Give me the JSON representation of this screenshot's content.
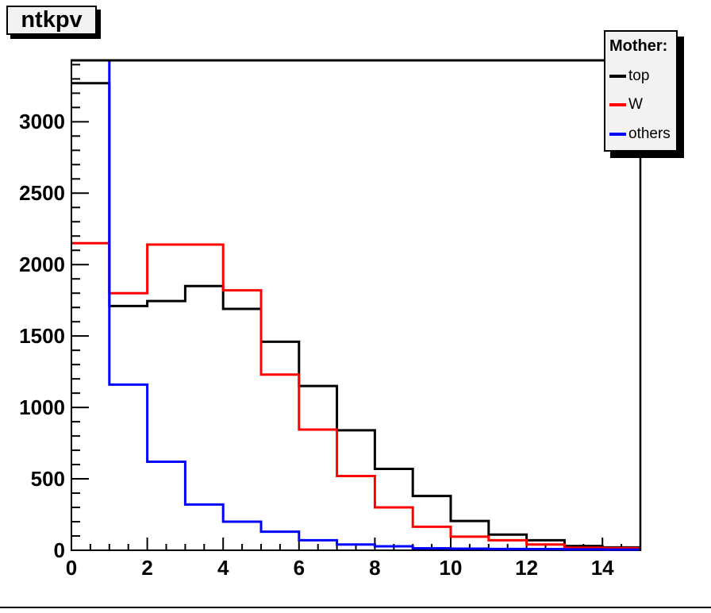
{
  "title": "ntkpv",
  "legend": {
    "header": "Mother:",
    "entries": [
      {
        "label": "top",
        "color": "#000000"
      },
      {
        "label": "W",
        "color": "#ff0000"
      },
      {
        "label": "others",
        "color": "#0000ff"
      }
    ]
  },
  "colors": {
    "background": "#ffffff",
    "box_fill": "#f2f2f2",
    "frame": "#000000",
    "series_top": "#000000",
    "series_w": "#ff0000",
    "series_others": "#0000ff"
  },
  "chart_data": {
    "type": "step-histogram",
    "title": "ntkpv",
    "xlabel": "",
    "ylabel": "",
    "xlim": [
      0,
      15
    ],
    "ylim": [
      0,
      3430
    ],
    "grid": false,
    "legend_position": "top-right",
    "bin_edges": [
      0,
      1,
      2,
      3,
      4,
      5,
      6,
      7,
      8,
      9,
      10,
      11,
      12,
      13,
      14,
      15
    ],
    "x_tick_values": [
      0,
      2,
      4,
      6,
      8,
      10,
      12,
      14
    ],
    "x_tick_labels": [
      "0",
      "2",
      "4",
      "6",
      "8",
      "10",
      "12",
      "14"
    ],
    "x_minor_tick_step": 0.5,
    "y_tick_values": [
      0,
      500,
      1000,
      1500,
      2000,
      2500,
      3000
    ],
    "y_tick_labels": [
      "0",
      "500",
      "1000",
      "1500",
      "2000",
      "2500",
      "3000"
    ],
    "y_minor_tick_step": 100,
    "series": [
      {
        "name": "top",
        "color": "#000000",
        "first_bin_overflow": false,
        "values": [
          3270,
          1710,
          1745,
          1850,
          1690,
          1460,
          1150,
          840,
          570,
          380,
          205,
          110,
          70,
          30,
          20
        ]
      },
      {
        "name": "W",
        "color": "#ff0000",
        "first_bin_overflow": false,
        "values": [
          2150,
          1800,
          2140,
          2140,
          1820,
          1230,
          845,
          520,
          300,
          165,
          95,
          70,
          40,
          18,
          15
        ]
      },
      {
        "name": "others",
        "color": "#0000ff",
        "first_bin_overflow": true,
        "values": [
          3430,
          1160,
          620,
          320,
          200,
          130,
          70,
          40,
          28,
          14,
          11,
          9,
          8,
          6,
          5
        ]
      }
    ]
  }
}
